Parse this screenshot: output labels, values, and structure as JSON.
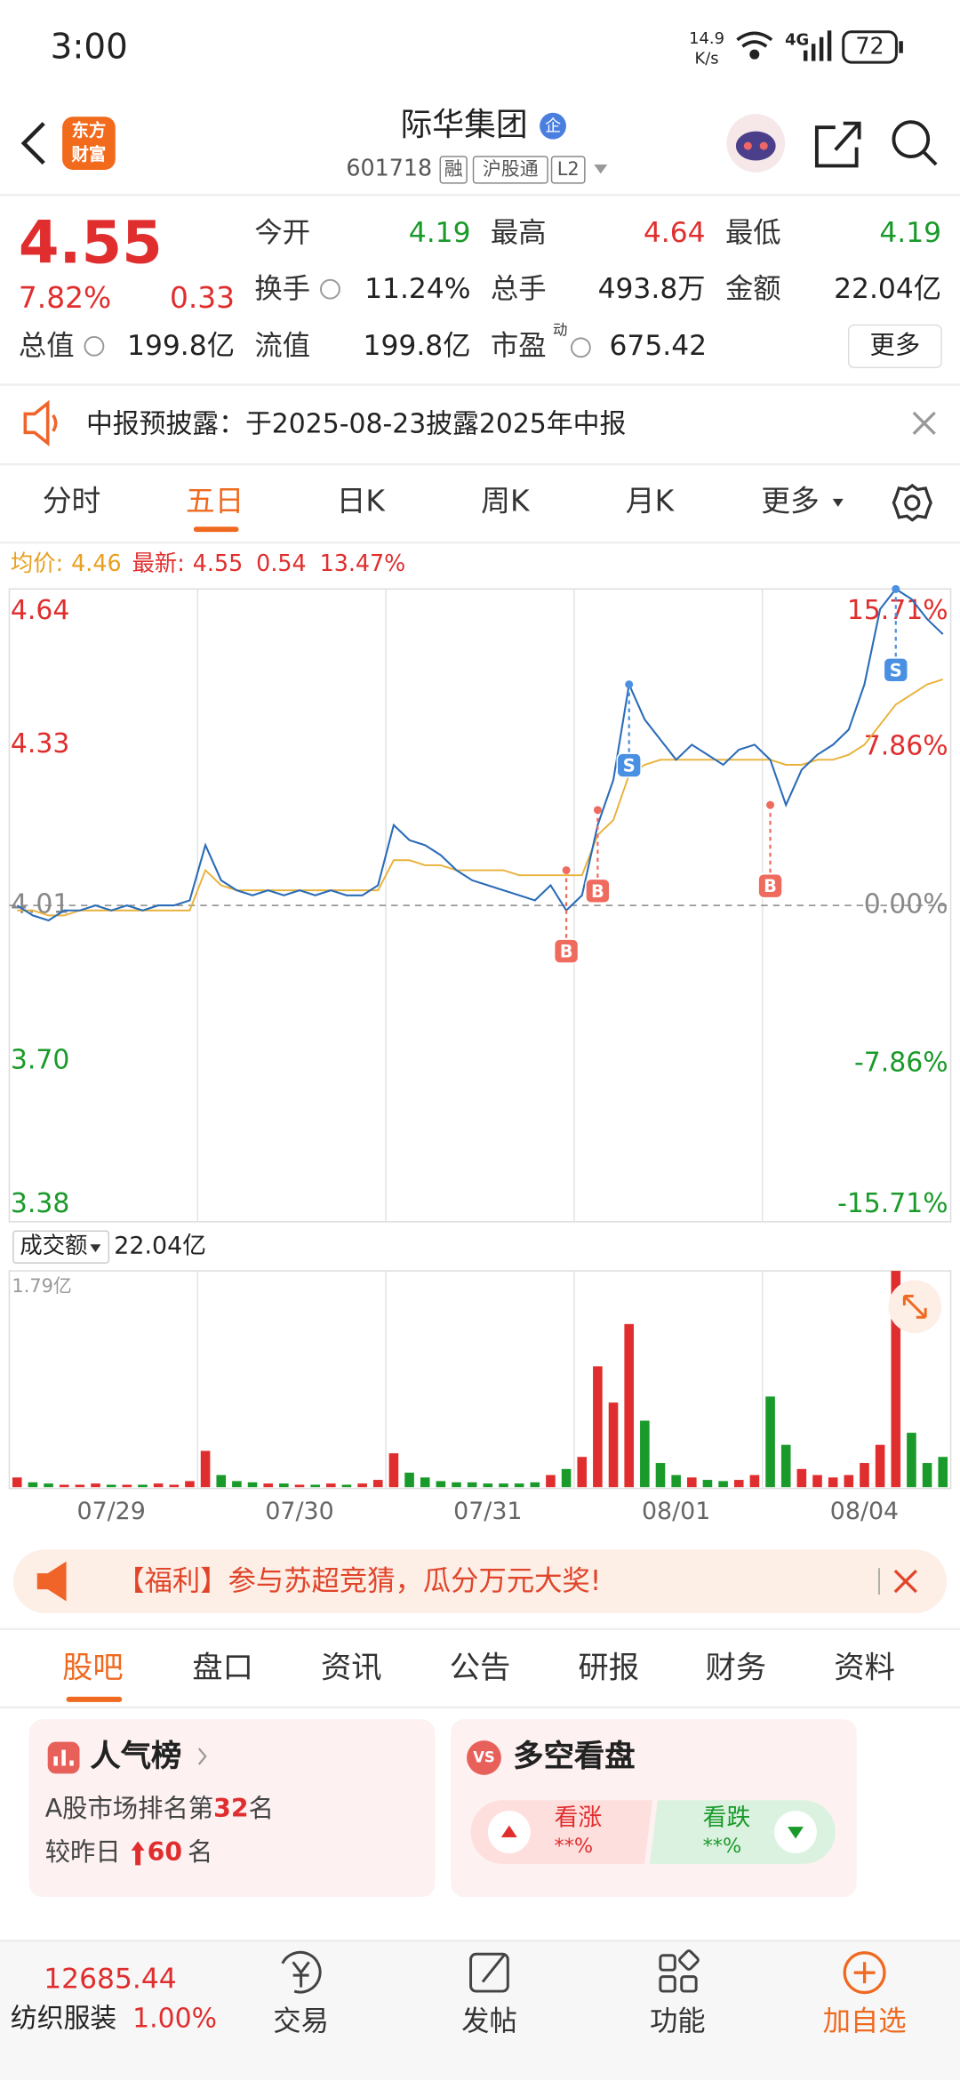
{
  "status_bar": {
    "time": "3:00",
    "speed": "14.9",
    "speed_unit": "K/s",
    "network": "4G",
    "battery": "72"
  },
  "header": {
    "logo": [
      "东方",
      "财富"
    ],
    "title": "际华集团",
    "badge": "企",
    "code": "601718",
    "tags": [
      "融",
      "沪股通",
      "L2"
    ]
  },
  "quote": {
    "price": "4.55",
    "change_pct": "7.82%",
    "change": "0.33",
    "more": "更多",
    "fields": [
      {
        "label": "今开",
        "value": "4.19",
        "color": "#1a9a2a"
      },
      {
        "label": "最高",
        "value": "4.64",
        "color": "#e02e2e"
      },
      {
        "label": "最低",
        "value": "4.19",
        "color": "#1a9a2a"
      },
      {
        "label": "换手",
        "value": "11.24%"
      },
      {
        "label": "总手",
        "value": "493.8万"
      },
      {
        "label": "金额",
        "value": "22.04亿"
      },
      {
        "label": "总值",
        "value": "199.8亿"
      },
      {
        "label": "流值",
        "value": "199.8亿"
      },
      {
        "label": "市盈",
        "sup": "动",
        "value": "675.42"
      }
    ]
  },
  "notice": "中报预披露：于2025-08-23披露2025年中报",
  "period_tabs": {
    "items": [
      "分时",
      "五日",
      "日K",
      "周K",
      "月K",
      "更多"
    ],
    "active": 1
  },
  "chart_data": [
    {
      "type": "line",
      "ylim": [
        3.38,
        4.64
      ],
      "yticks": [
        4.64,
        4.33,
        4.01,
        {
          "value": 3.7,
          "label": "3.70"
        },
        3.38
      ],
      "y2lim": [
        -15.71,
        15.71
      ],
      "y2ticks": [
        {
          "value": 15.71,
          "label": "15.71%"
        },
        {
          "value": 7.86,
          "label": "7.86%"
        },
        {
          "value": 0,
          "label": "0.00%"
        },
        {
          "value": -7.86,
          "label": "-7.86%"
        },
        {
          "value": -15.71,
          "label": "-15.71%"
        }
      ],
      "summary": {
        "avg": "4.46",
        "latest": "4.55",
        "change": "0.54",
        "change_pct": "13.47%"
      },
      "series": [
        {
          "name": "均价:",
          "color": "#e8b23a",
          "values": [
            4.0,
            4.0,
            3.99,
            3.99,
            4.0,
            4.0,
            4.0,
            4.0,
            4.0,
            4.0,
            4.0,
            4.0,
            4.08,
            4.05,
            4.04,
            4.04,
            4.04,
            4.04,
            4.04,
            4.04,
            4.04,
            4.04,
            4.04,
            4.04,
            4.1,
            4.1,
            4.09,
            4.09,
            4.08,
            4.08,
            4.08,
            4.08,
            4.07,
            4.07,
            4.07,
            4.07,
            4.07,
            4.15,
            4.18,
            4.27,
            4.29,
            4.3,
            4.3,
            4.3,
            4.3,
            4.3,
            4.3,
            4.3,
            4.3,
            4.29,
            4.29,
            4.3,
            4.3,
            4.31,
            4.33,
            4.37,
            4.41,
            4.43,
            4.45,
            4.46
          ]
        },
        {
          "name": "最新:",
          "color": "#2b6cb8",
          "values": [
            4.01,
            3.99,
            3.98,
            4.0,
            4.0,
            4.01,
            4.0,
            4.01,
            4.0,
            4.01,
            4.01,
            4.02,
            4.13,
            4.06,
            4.04,
            4.03,
            4.04,
            4.03,
            4.04,
            4.03,
            4.04,
            4.03,
            4.03,
            4.05,
            4.17,
            4.14,
            4.13,
            4.11,
            4.08,
            4.06,
            4.05,
            4.04,
            4.03,
            4.02,
            4.05,
            4.0,
            4.03,
            4.17,
            4.26,
            4.45,
            4.38,
            4.34,
            4.3,
            4.33,
            4.31,
            4.29,
            4.32,
            4.33,
            4.3,
            4.21,
            4.28,
            4.31,
            4.33,
            4.36,
            4.45,
            4.6,
            4.64,
            4.62,
            4.58,
            4.55
          ]
        }
      ],
      "trades": [
        {
          "label": "B",
          "index": 35,
          "price": 4.08
        },
        {
          "label": "B",
          "index": 37,
          "price": 4.2
        },
        {
          "label": "S",
          "index": 39,
          "price": 4.45
        },
        {
          "label": "B",
          "index": 48,
          "price": 4.21
        },
        {
          "label": "S",
          "index": 56,
          "price": 4.64
        }
      ],
      "trade_colors": {
        "B": "#ee6b5e",
        "S": "#4a90e2"
      }
    },
    {
      "type": "bar",
      "label": "成交额",
      "total": "22.04亿",
      "x": [
        null,
        null,
        null,
        null,
        null,
        null,
        "07/29",
        null,
        null,
        null,
        null,
        null,
        null,
        null,
        null,
        null,
        null,
        null,
        "07/30",
        null,
        null,
        null,
        null,
        null,
        null,
        null,
        null,
        null,
        null,
        null,
        "07/31",
        null,
        null,
        null,
        null,
        null,
        null,
        null,
        null,
        null,
        null,
        null,
        "08/01",
        null,
        null,
        null,
        null,
        null,
        null,
        null,
        null,
        null,
        null,
        null,
        "08/04",
        null,
        null,
        null,
        null,
        null
      ],
      "values": [
        0.08,
        0.04,
        0.03,
        0.02,
        0.02,
        0.03,
        0.02,
        0.02,
        0.02,
        0.03,
        0.02,
        0.05,
        0.3,
        0.1,
        0.05,
        0.04,
        0.03,
        0.03,
        0.02,
        0.02,
        0.03,
        0.02,
        0.03,
        0.06,
        0.28,
        0.12,
        0.08,
        0.05,
        0.04,
        0.04,
        0.03,
        0.03,
        0.03,
        0.04,
        0.1,
        0.15,
        0.25,
        1.0,
        0.7,
        1.35,
        0.55,
        0.2,
        0.1,
        0.08,
        0.06,
        0.05,
        0.06,
        0.1,
        0.75,
        0.35,
        0.15,
        0.1,
        0.08,
        0.1,
        0.2,
        0.35,
        1.79,
        0.45,
        0.2,
        0.25
      ],
      "ylim": [
        0,
        1.79
      ],
      "yticks": [
        {
          "value": 1.79,
          "label": "1.79亿"
        }
      ],
      "colors": {
        "up": "#e02e2e",
        "down": "#1a9a2a"
      }
    }
  ],
  "banner": "【福利】参与苏超竞猜，瓜分万元大奖!",
  "section_tabs": {
    "items": [
      "股吧",
      "盘口",
      "资讯",
      "公告",
      "研报",
      "财务",
      "资料"
    ],
    "active": 0
  },
  "popularity": {
    "title": "人气榜",
    "rank_prefix": "A股市场排名第",
    "rank": "32",
    "rank_suffix": "名",
    "change_prefix": "较昨日",
    "change": "60",
    "change_suffix": "名"
  },
  "sentiment": {
    "icon": "VS",
    "title": "多空看盘",
    "bull": "看涨",
    "bull_pct": "**%",
    "bear": "看跌",
    "bear_pct": "**%"
  },
  "bottom_bar": {
    "index_value": "12685.44",
    "sector": "纺织服装",
    "sector_change": "1.00%",
    "actions": [
      "交易",
      "发帖",
      "功能",
      "加自选"
    ]
  }
}
